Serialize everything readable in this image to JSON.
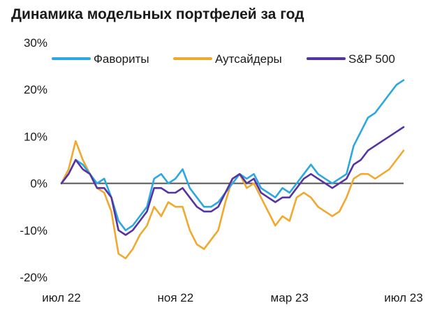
{
  "title": "Динамика модельных портфелей за год",
  "chart_data": {
    "type": "line",
    "title": "Динамика модельных портфелей за год",
    "xlabel": "",
    "ylabel": "",
    "x_ticks": [
      "июл 22",
      "ноя 22",
      "мар 23",
      "июл 23"
    ],
    "y_ticks": [
      "30%",
      "20%",
      "10%",
      "0%",
      "-10%",
      "-20%"
    ],
    "ylim": [
      -20,
      30
    ],
    "grid": false,
    "zero_line": true,
    "legend_position": "top-right",
    "x_unit": "месяцев от июл 22",
    "x": [
      0,
      0.25,
      0.5,
      0.75,
      1,
      1.25,
      1.5,
      1.75,
      2,
      2.25,
      2.5,
      2.75,
      3,
      3.25,
      3.5,
      3.75,
      4,
      4.25,
      4.5,
      4.75,
      5,
      5.25,
      5.5,
      5.75,
      6,
      6.25,
      6.5,
      6.75,
      7,
      7.25,
      7.5,
      7.75,
      8,
      8.25,
      8.5,
      8.75,
      9,
      9.25,
      9.5,
      9.75,
      10,
      10.25,
      10.5,
      10.75,
      11,
      11.25,
      11.5,
      11.75,
      12
    ],
    "series": [
      {
        "name": "Фавориты",
        "color": "#2aa8df",
        "values": [
          0,
          2,
          5,
          4,
          2,
          0,
          1,
          -3,
          -8,
          -10,
          -9,
          -7,
          -5,
          1,
          2,
          0,
          1,
          3,
          -1,
          -3,
          -5,
          -5,
          -4,
          -2,
          0,
          2,
          1,
          2,
          -1,
          -2,
          -3,
          -1,
          -2,
          0,
          2,
          4,
          2,
          1,
          0,
          1,
          2,
          8,
          11,
          14,
          15,
          17,
          19,
          21,
          22
        ]
      },
      {
        "name": "Аутсайдеры",
        "color": "#f0a92e",
        "values": [
          0,
          3,
          9,
          5,
          2,
          -1,
          -2,
          -6,
          -15,
          -16,
          -14,
          -11,
          -9,
          -5,
          -7,
          -4,
          -5,
          -5,
          -10,
          -13,
          -14,
          -12,
          -10,
          -4,
          1,
          2,
          -1,
          0,
          -3,
          -6,
          -9,
          -7,
          -8,
          -3,
          -2,
          -3,
          -5,
          -6,
          -7,
          -6,
          -3,
          1,
          2,
          2,
          1,
          2,
          3,
          5,
          7
        ]
      },
      {
        "name": "S&P 500",
        "color": "#5533a3",
        "values": [
          0,
          2,
          5,
          3,
          2,
          -1,
          -1,
          -3,
          -10,
          -11,
          -10,
          -8,
          -6,
          -1,
          -1,
          -2,
          -2,
          -1,
          -3,
          -5,
          -6,
          -6,
          -5,
          -2,
          1,
          2,
          0,
          1,
          -2,
          -3,
          -4,
          -3,
          -3,
          -1,
          1,
          2,
          1,
          0,
          -1,
          0,
          1,
          4,
          5,
          7,
          8,
          9,
          10,
          11,
          12
        ]
      }
    ]
  }
}
